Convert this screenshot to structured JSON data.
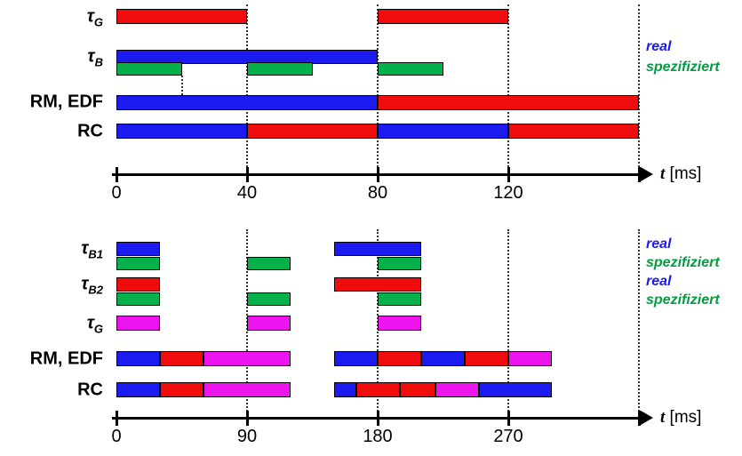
{
  "figure": {
    "background": "#ffffff"
  },
  "colors": {
    "red": "#f00c0c",
    "blue": "#1b1bef",
    "green": "#04b04a",
    "magenta": "#ee14ee",
    "axis": "#000000",
    "real_label": "#1b1bef",
    "spezifiziert_label": "#069a42"
  },
  "chart_data": [
    {
      "type": "bar",
      "subtype": "gantt-schedule",
      "title": "",
      "time_unit": "ms",
      "x_max": 160,
      "grid_ms": [
        40,
        80,
        120,
        160
      ],
      "axis": {
        "ticks": [
          {
            "ms": 0,
            "label": "0"
          },
          {
            "ms": 40,
            "label": "40"
          },
          {
            "ms": 80,
            "label": "80"
          },
          {
            "ms": 120,
            "label": "120"
          }
        ],
        "end_tick_ms": 160,
        "label_var": "t",
        "label_unit": "[ms]"
      },
      "rows": [
        {
          "label": {
            "base": "τ",
            "sub": "G"
          },
          "lanes": [
            {
              "name": "",
              "bars": [
                {
                  "s": 0,
                  "e": 40,
                  "c": "red"
                },
                {
                  "s": 80,
                  "e": 120,
                  "c": "red"
                }
              ]
            }
          ]
        },
        {
          "label": {
            "base": "τ",
            "sub": "B"
          },
          "lanes": [
            {
              "name": "real",
              "bars": [
                {
                  "s": 0,
                  "e": 80,
                  "c": "blue"
                }
              ]
            },
            {
              "name": "spezifiziert",
              "bars": [
                {
                  "s": 0,
                  "e": 20,
                  "c": "green"
                },
                {
                  "s": 40,
                  "e": 60,
                  "c": "green"
                },
                {
                  "s": 80,
                  "e": 100,
                  "c": "green"
                }
              ]
            }
          ]
        },
        {
          "label": {
            "base": "RM, EDF"
          },
          "lanes": [
            {
              "name": "",
              "bars": [
                {
                  "s": 0,
                  "e": 80,
                  "c": "blue"
                },
                {
                  "s": 80,
                  "e": 160,
                  "c": "red"
                }
              ]
            }
          ]
        },
        {
          "label": {
            "base": "RC"
          },
          "lanes": [
            {
              "name": "",
              "bars": [
                {
                  "s": 0,
                  "e": 40,
                  "c": "blue"
                },
                {
                  "s": 40,
                  "e": 80,
                  "c": "red"
                },
                {
                  "s": 80,
                  "e": 120,
                  "c": "blue"
                },
                {
                  "s": 120,
                  "e": 160,
                  "c": "red"
                }
              ]
            }
          ]
        }
      ],
      "right_labels": [
        {
          "text": "real",
          "color": "real_label"
        },
        {
          "text": "spezifiziert",
          "color": "spezifiziert_label"
        }
      ]
    },
    {
      "type": "bar",
      "subtype": "gantt-schedule",
      "title": "",
      "time_unit": "ms",
      "x_max": 360,
      "grid_ms": [
        90,
        180,
        270,
        360
      ],
      "axis": {
        "ticks": [
          {
            "ms": 0,
            "label": "0"
          },
          {
            "ms": 90,
            "label": "90"
          },
          {
            "ms": 180,
            "label": "180"
          },
          {
            "ms": 270,
            "label": "270"
          }
        ],
        "end_tick_ms": 360,
        "label_var": "t",
        "label_unit": "[ms]"
      },
      "rows": [
        {
          "label": {
            "base": "τ",
            "sub": "B1"
          },
          "lanes": [
            {
              "name": "real",
              "bars": [
                {
                  "s": 0,
                  "e": 30,
                  "c": "blue"
                },
                {
                  "s": 150,
                  "e": 210,
                  "c": "blue"
                }
              ]
            },
            {
              "name": "spezifiziert",
              "bars": [
                {
                  "s": 0,
                  "e": 30,
                  "c": "green"
                },
                {
                  "s": 90,
                  "e": 120,
                  "c": "green"
                },
                {
                  "s": 180,
                  "e": 210,
                  "c": "green"
                }
              ]
            }
          ]
        },
        {
          "label": {
            "base": "τ",
            "sub": "B2"
          },
          "lanes": [
            {
              "name": "real",
              "bars": [
                {
                  "s": 0,
                  "e": 30,
                  "c": "red"
                },
                {
                  "s": 150,
                  "e": 210,
                  "c": "red"
                }
              ]
            },
            {
              "name": "spezifiziert",
              "bars": [
                {
                  "s": 0,
                  "e": 30,
                  "c": "green"
                },
                {
                  "s": 90,
                  "e": 120,
                  "c": "green"
                },
                {
                  "s": 180,
                  "e": 210,
                  "c": "green"
                }
              ]
            }
          ]
        },
        {
          "label": {
            "base": "τ",
            "sub": "G"
          },
          "lanes": [
            {
              "name": "",
              "bars": [
                {
                  "s": 0,
                  "e": 30,
                  "c": "magenta"
                },
                {
                  "s": 90,
                  "e": 120,
                  "c": "magenta"
                },
                {
                  "s": 180,
                  "e": 210,
                  "c": "magenta"
                }
              ]
            }
          ]
        },
        {
          "label": {
            "base": "RM, EDF"
          },
          "lanes": [
            {
              "name": "",
              "bars": [
                {
                  "s": 0,
                  "e": 30,
                  "c": "blue"
                },
                {
                  "s": 30,
                  "e": 60,
                  "c": "red"
                },
                {
                  "s": 60,
                  "e": 120,
                  "c": "magenta"
                },
                {
                  "s": 150,
                  "e": 180,
                  "c": "blue"
                },
                {
                  "s": 180,
                  "e": 210,
                  "c": "red"
                },
                {
                  "s": 210,
                  "e": 240,
                  "c": "blue"
                },
                {
                  "s": 240,
                  "e": 270,
                  "c": "red"
                },
                {
                  "s": 270,
                  "e": 300,
                  "c": "magenta"
                }
              ]
            }
          ]
        },
        {
          "label": {
            "base": "RC"
          },
          "lanes": [
            {
              "name": "",
              "bars": [
                {
                  "s": 0,
                  "e": 30,
                  "c": "blue"
                },
                {
                  "s": 30,
                  "e": 60,
                  "c": "red"
                },
                {
                  "s": 60,
                  "e": 120,
                  "c": "magenta"
                },
                {
                  "s": 150,
                  "e": 165,
                  "c": "blue"
                },
                {
                  "s": 165,
                  "e": 195,
                  "c": "red"
                },
                {
                  "s": 195,
                  "e": 220,
                  "c": "red"
                },
                {
                  "s": 220,
                  "e": 250,
                  "c": "magenta"
                },
                {
                  "s": 250,
                  "e": 300,
                  "c": "blue"
                }
              ]
            }
          ]
        }
      ],
      "right_labels": [
        {
          "text": "real",
          "color": "real_label"
        },
        {
          "text": "spezifiziert",
          "color": "spezifiziert_label"
        },
        {
          "text": "real",
          "color": "real_label"
        },
        {
          "text": "spezifiziert",
          "color": "spezifiziert_label"
        }
      ]
    }
  ]
}
